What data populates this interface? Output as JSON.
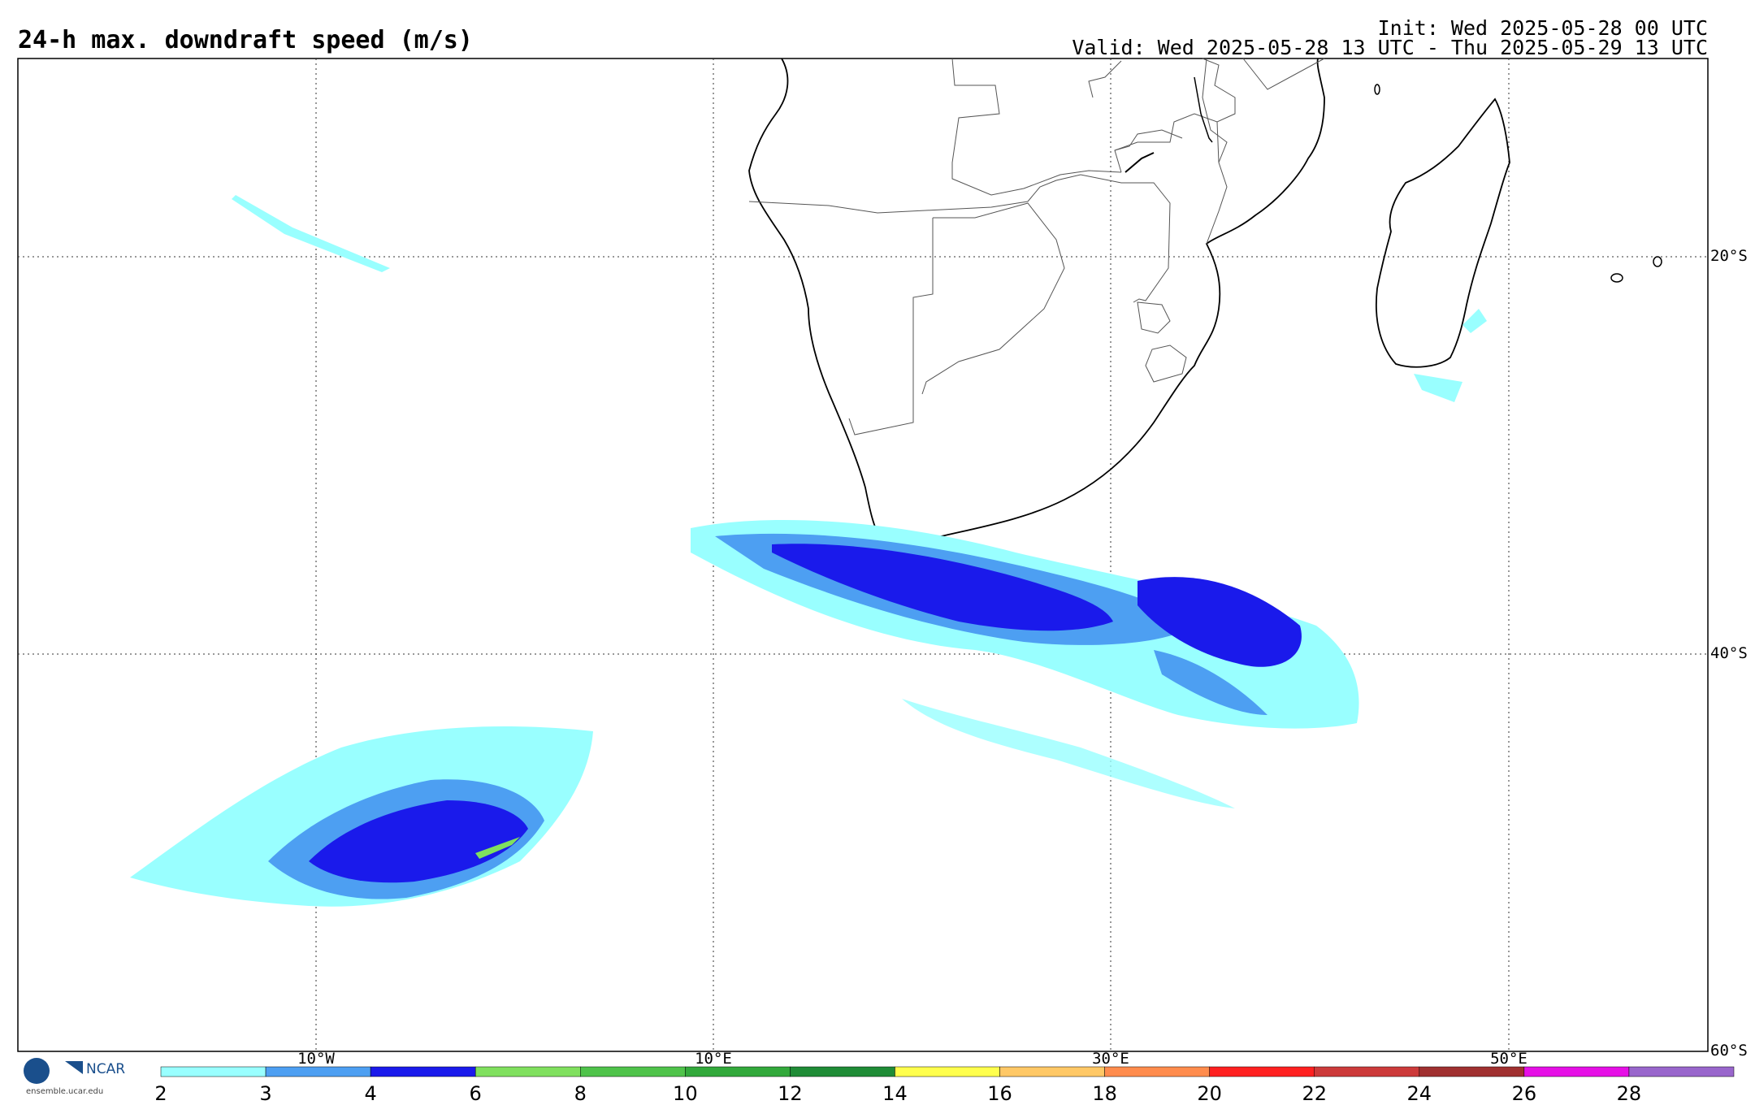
{
  "header": {
    "title": "24-h max. downdraft speed (m/s)",
    "init": "Init: Wed 2025-05-28 00 UTC",
    "valid": "Valid: Wed 2025-05-28 13 UTC - Thu 2025-05-29 13 UTC"
  },
  "map": {
    "lat_labels": [
      "20°S",
      "40°S",
      "60°S"
    ],
    "lon_labels": [
      "10°W",
      "10°E",
      "30°E",
      "50°E"
    ]
  },
  "colorbar": {
    "labels": [
      "2",
      "3",
      "4",
      "6",
      "8",
      "10",
      "12",
      "14",
      "16",
      "18",
      "20",
      "22",
      "24",
      "26",
      "28"
    ],
    "colors": [
      "#99ffff",
      "#4d9ff2",
      "#1a1aeb",
      "#80e05e",
      "#4fc34a",
      "#32a93b",
      "#1f8c36",
      "#ffff4d",
      "#ffc866",
      "#ff8c4d",
      "#ff2020",
      "#cc3a3a",
      "#a03030",
      "#e60fe6",
      "#9966cc"
    ]
  },
  "footer": {
    "logo_text": "NCAR",
    "url": "ensemble.ucar.edu"
  }
}
